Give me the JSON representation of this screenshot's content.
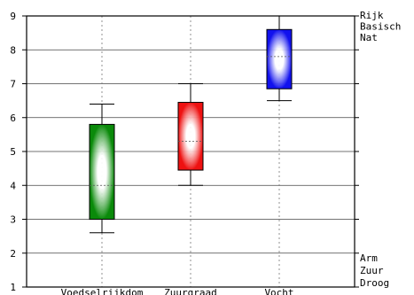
{
  "chart_data": {
    "type": "boxplot",
    "ylim": [
      1,
      9
    ],
    "yticks": [
      1,
      2,
      3,
      4,
      5,
      6,
      7,
      8,
      9
    ],
    "grid": true,
    "categories": [
      "Voedselrijkdom",
      "Zuurgraad",
      "Vocht"
    ],
    "boxes": [
      {
        "category": "Voedselrijkdom",
        "whisker_low": 2.6,
        "q1": 3.0,
        "median": 4.0,
        "q3": 5.8,
        "whisker_high": 6.4,
        "color": "#0a8a0a"
      },
      {
        "category": "Zuurgraad",
        "whisker_low": 4.0,
        "q1": 4.45,
        "median": 5.3,
        "q3": 6.45,
        "whisker_high": 7.0,
        "color": "#ee1111"
      },
      {
        "category": "Vocht",
        "whisker_low": 6.5,
        "q1": 6.85,
        "median": 7.8,
        "q3": 8.6,
        "whisker_high": 9.0,
        "color": "#1111ee"
      }
    ],
    "right_labels_top": [
      "Rijk",
      "Basisch",
      "Nat"
    ],
    "right_labels_bottom": [
      "Arm",
      "Zuur",
      "Droog"
    ]
  }
}
